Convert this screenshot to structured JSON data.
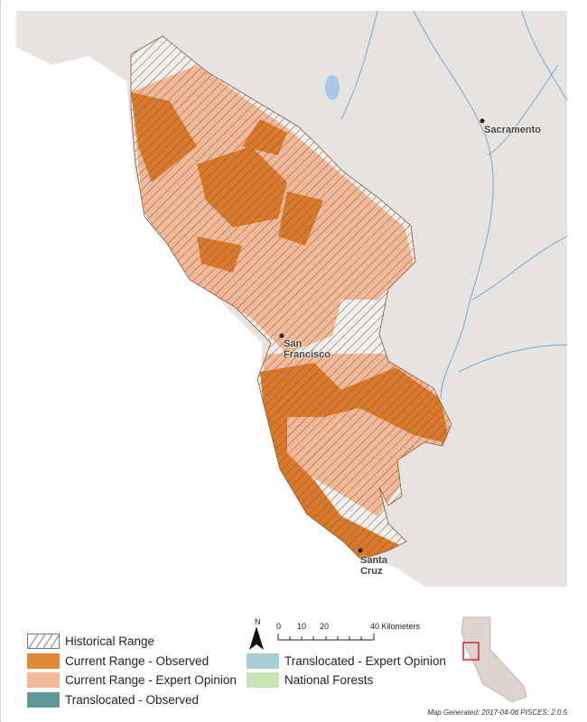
{
  "map": {
    "cities": [
      {
        "name": "Sacramento"
      },
      {
        "name": "San Francisco",
        "lines": [
          "San",
          "Francisco"
        ]
      },
      {
        "name": "Santa Cruz",
        "lines": [
          "Santa",
          "Cruz"
        ]
      }
    ],
    "colors": {
      "ocean": "#ffffff",
      "land": "#e6e3e0",
      "current_observed": "#d9792a",
      "current_expert": "#f0b892",
      "historical_hatch": "#8a5a3a",
      "water": "#7aa6d6"
    }
  },
  "legend": {
    "items": [
      {
        "label": "Historical Range",
        "swatch": "hatch"
      },
      {
        "label": "Current Range - Observed",
        "color": "#e0893b"
      },
      {
        "label": "Current Range - Expert Opinion",
        "color": "#f1b99a"
      },
      {
        "label": "Translocated - Observed",
        "color": "#5f9a98"
      },
      {
        "label": "Translocated - Expert Opinion",
        "color": "#a8cdd5"
      },
      {
        "label": "National Forests",
        "color": "#c7e3b4"
      }
    ]
  },
  "north_arrow": {
    "label": "N"
  },
  "scale_bar": {
    "ticks": [
      "0",
      "10",
      "20",
      "40 Kilometers"
    ]
  },
  "footer": "Map Generated: 2017-04-06 PISCES: 2.0.5"
}
